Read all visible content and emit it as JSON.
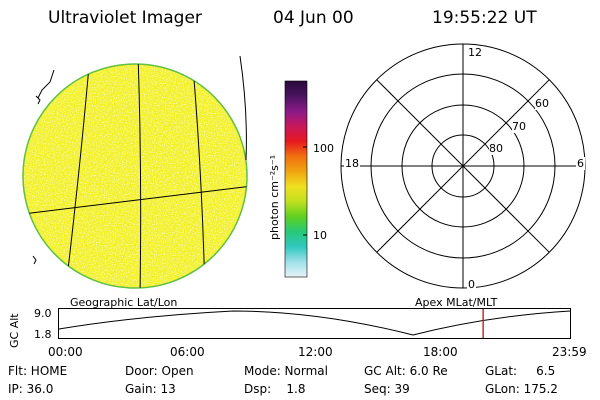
{
  "header": {
    "instrument": "Ultraviolet Imager",
    "date": "04 Jun 00",
    "time": "19:55:22 UT"
  },
  "colorbar": {
    "label": "photon cm⁻²s⁻¹",
    "tick_high": "100",
    "tick_low": "10",
    "stops": [
      "#2a0a3a",
      "#4a1460",
      "#8a1a88",
      "#c8185c",
      "#e61820",
      "#f07010",
      "#f0a410",
      "#f0e020",
      "#c0e020",
      "#60d020",
      "#28c878",
      "#30c8c0",
      "#a0e0e8",
      "#e8f4f8"
    ]
  },
  "left_panel": {
    "label": "Geographic Lat/Lon",
    "disk_color": "#f2f020",
    "rim_color": "#60c040"
  },
  "polar_plot": {
    "label": "Apex MLat/MLT",
    "mlt_labels": {
      "top": "12",
      "left": "18",
      "right": "6",
      "bottom": "0"
    },
    "lat_labels": [
      "60",
      "70",
      "80"
    ]
  },
  "timeline": {
    "ylabel": "GC Alt",
    "y_max": "9.0",
    "y_min": "1.8",
    "x_ticks": [
      "00:00",
      "06:00",
      "12:00",
      "18:00",
      "23:59"
    ],
    "current_marker_hours": 19.92,
    "marker_color": "#c02020"
  },
  "status": {
    "flt": "Flt: HOME",
    "ip": "IP: 36.0",
    "door": "Door: Open",
    "gain": "Gain: 13",
    "mode": "Mode: Normal",
    "dsp": "Dsp:    1.8",
    "gc_alt": "GC Alt: 6.0 Re",
    "seq": "Seq: 39",
    "glat": "GLat:     6.5",
    "glon": "GLon: 175.2"
  }
}
